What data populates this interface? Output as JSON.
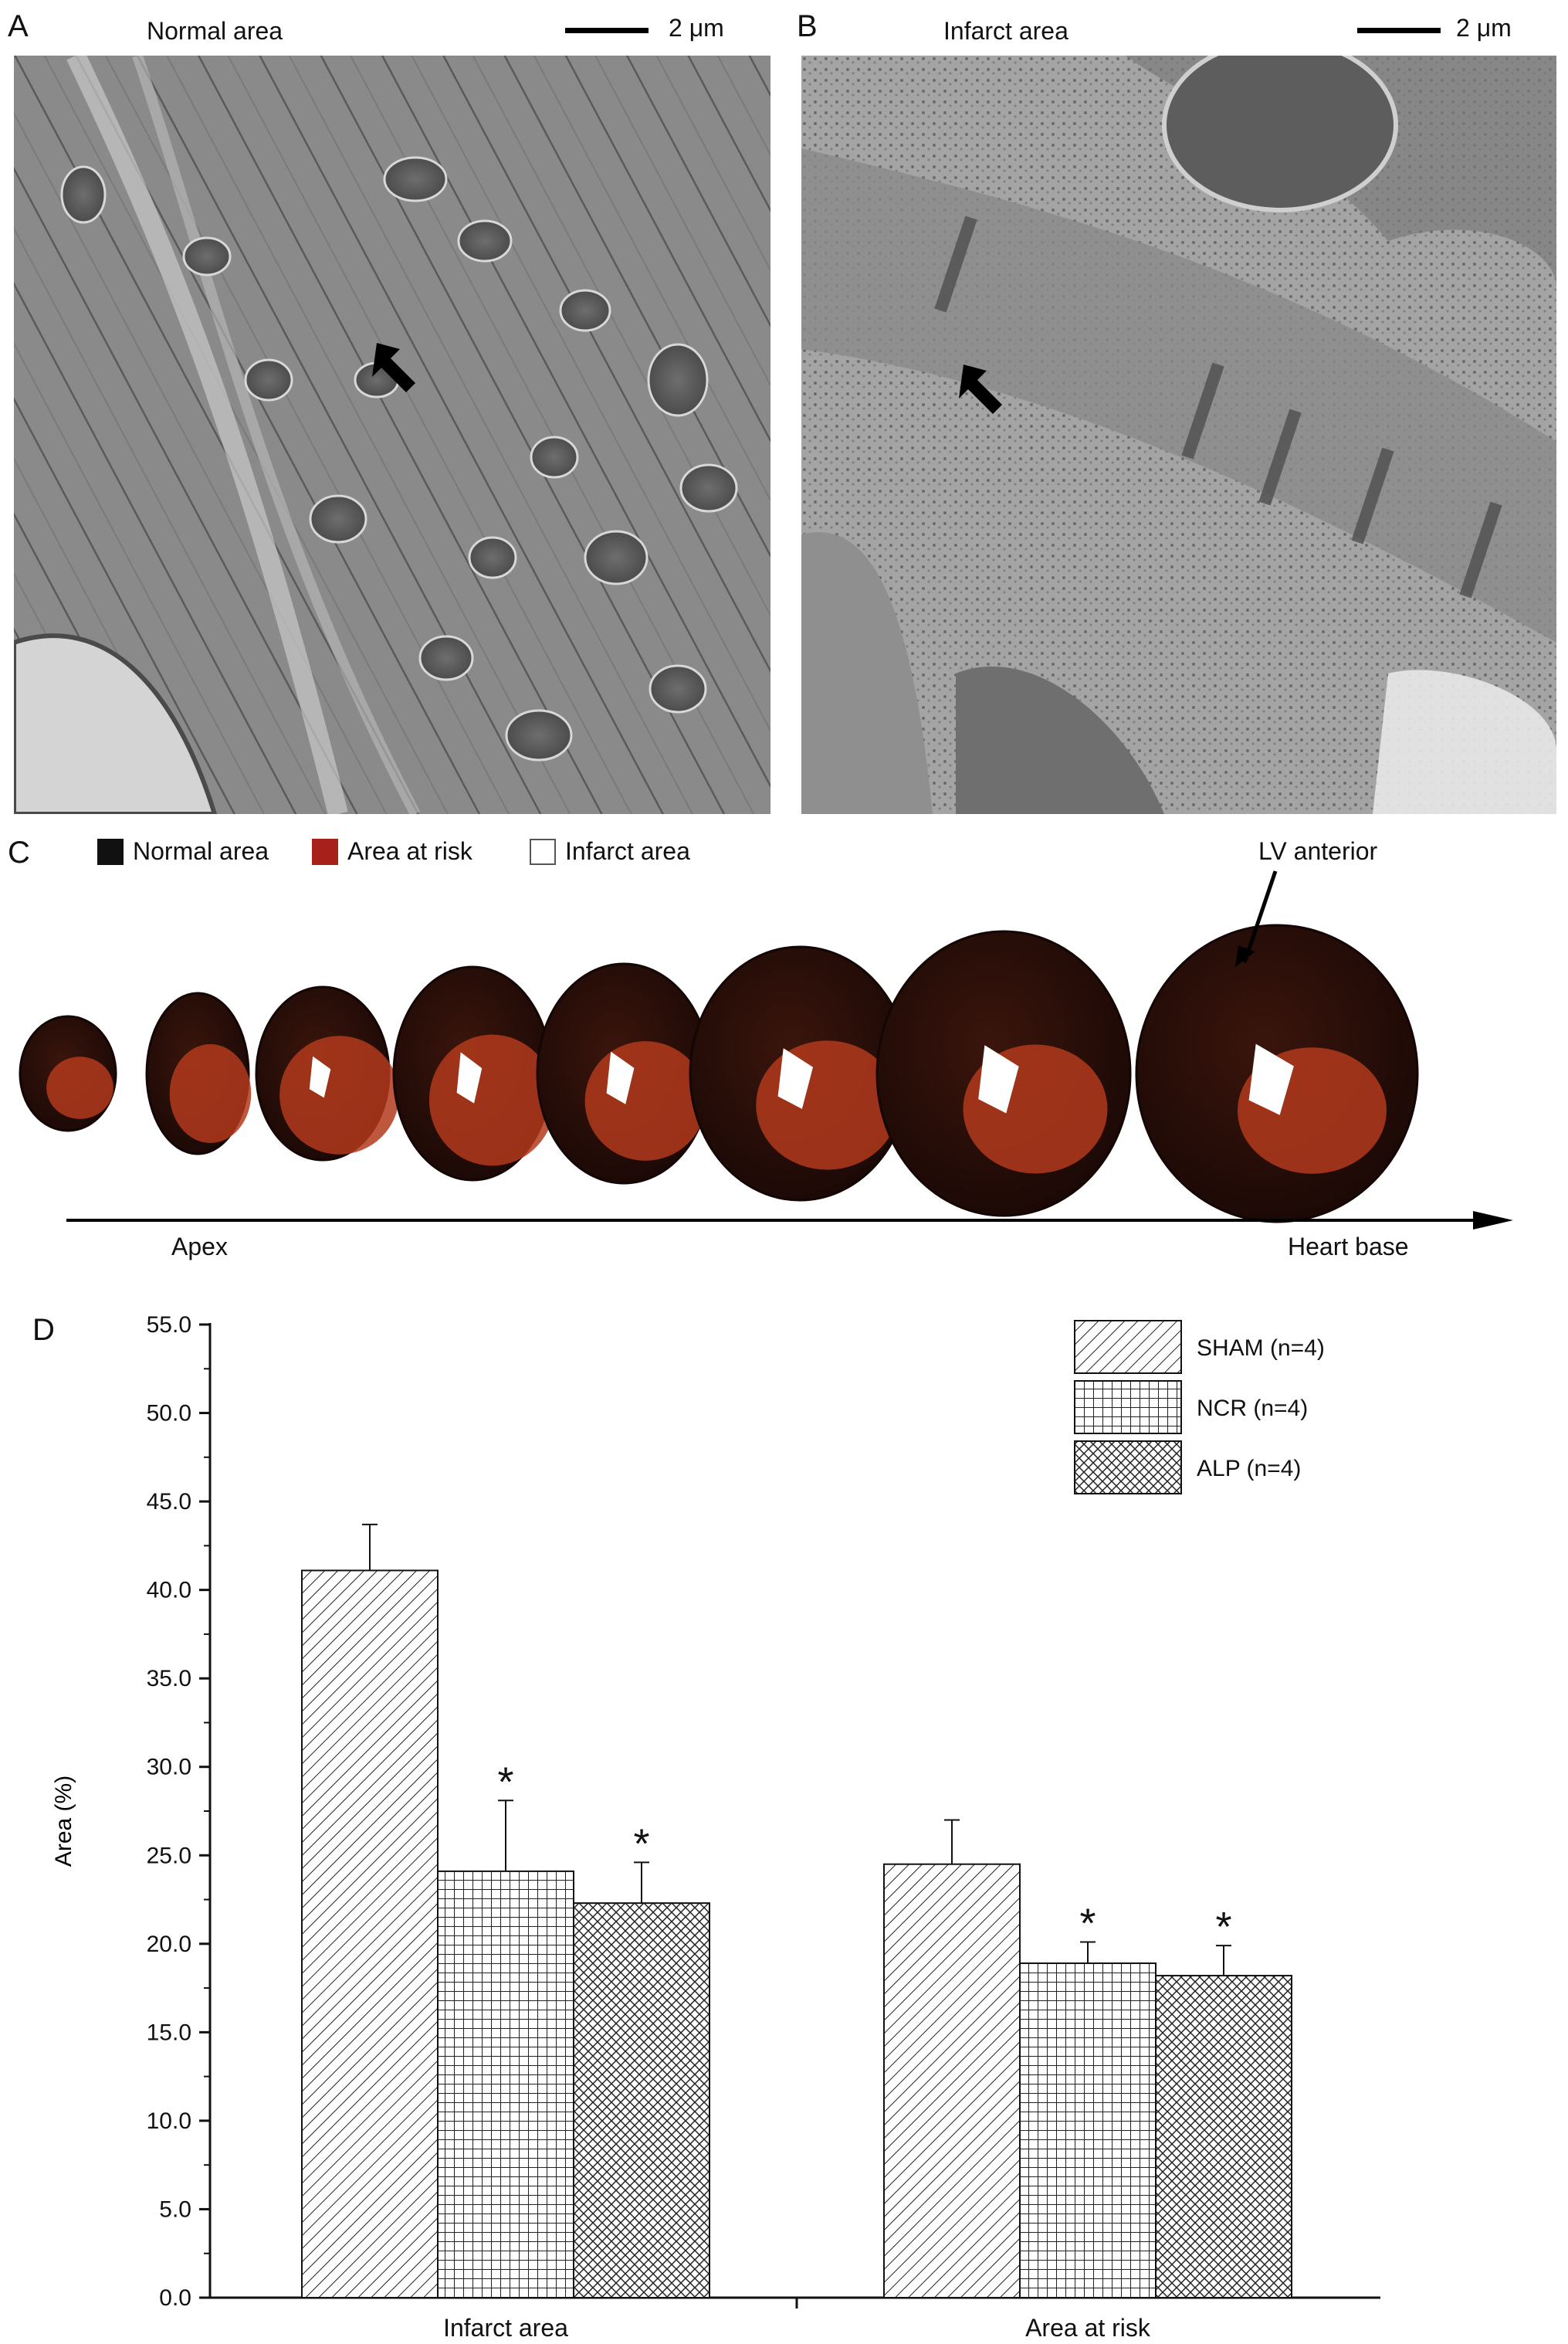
{
  "panel_a": {
    "letter": "A",
    "title": "Normal area",
    "scale_label": "2 μm"
  },
  "panel_b": {
    "letter": "B",
    "title": "Infarct area",
    "scale_label": "2 μm"
  },
  "panel_c": {
    "letter": "C",
    "legend": [
      {
        "label": "Normal area",
        "color": "#111111"
      },
      {
        "label": "Area at risk",
        "color": "#a8201a"
      },
      {
        "label": "Infarct area",
        "color": "#ffffff"
      }
    ],
    "annotation": "LV anterior",
    "axis_start": "Apex",
    "axis_end": "Heart base",
    "slices": [
      {
        "infarct_center": false,
        "risk_fraction": 0.35
      },
      {
        "infarct_center": false,
        "risk_fraction": 0.45
      },
      {
        "infarct_center": true,
        "risk_fraction": 0.55
      },
      {
        "infarct_center": true,
        "risk_fraction": 0.45
      },
      {
        "infarct_center": true,
        "risk_fraction": 0.35
      },
      {
        "infarct_center": true,
        "risk_fraction": 0.3
      },
      {
        "infarct_center": true,
        "risk_fraction": 0.22
      },
      {
        "infarct_center": true,
        "risk_fraction": 0.18
      }
    ]
  },
  "panel_d": {
    "letter": "D"
  },
  "colors": {
    "bar_fill": "#ffffff",
    "bar_stroke": "#111111",
    "slice_dark": "#2a0f0a",
    "slice_red": "#b23a1c"
  },
  "chart_data": {
    "type": "bar",
    "categories": [
      "Infarct area",
      "Area at risk"
    ],
    "ylabel": "Area (%)",
    "xlabel": "",
    "title": "",
    "ylim": [
      0,
      55
    ],
    "yticks": [
      "0.0",
      "5.0",
      "10.0",
      "15.0",
      "20.0",
      "25.0",
      "30.0",
      "35.0",
      "40.0",
      "45.0",
      "50.0",
      "55.0"
    ],
    "series": [
      {
        "name": "SHAM (n=4)",
        "pattern": "diagonal",
        "values": [
          41.1,
          24.5
        ],
        "errors": [
          2.6,
          2.5
        ],
        "significant": [
          false,
          false
        ]
      },
      {
        "name": "NCR (n=4)",
        "pattern": "grid",
        "values": [
          24.1,
          18.9
        ],
        "errors": [
          4.0,
          1.2
        ],
        "significant": [
          true,
          true
        ]
      },
      {
        "name": "ALP (n=4)",
        "pattern": "crosshatch",
        "values": [
          22.3,
          18.2
        ],
        "errors": [
          2.3,
          1.7
        ],
        "significant": [
          true,
          true
        ]
      }
    ],
    "significance_marker": "*",
    "legend_position": "top-right",
    "grid": false
  }
}
